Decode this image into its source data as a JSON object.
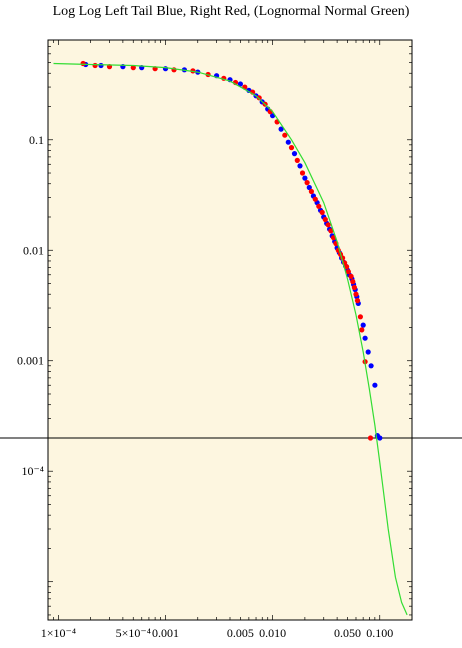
{
  "chart_data": {
    "type": "scatter",
    "title": "Log Log Left Tail Blue, Right Red, (Lognormal Normal Green)",
    "xscale": "log",
    "yscale": "log",
    "xlim": [
      8e-05,
      0.2
    ],
    "ylim": [
      4.5e-06,
      0.8
    ],
    "background": "#fdf6e0",
    "grid": false,
    "reference_line_y": 0.0002,
    "x_ticks": [
      {
        "value": 0.0001,
        "label": "1×10⁻⁴"
      },
      {
        "value": 0.0005,
        "label": "5×10⁻⁴"
      },
      {
        "value": 0.001,
        "label": "0.001"
      },
      {
        "value": 0.005,
        "label": "0.005"
      },
      {
        "value": 0.01,
        "label": "0.010"
      },
      {
        "value": 0.05,
        "label": "0.050"
      },
      {
        "value": 0.1,
        "label": "0.100"
      }
    ],
    "y_ticks": [
      {
        "value": 0.1,
        "label": "0.1"
      },
      {
        "value": 0.01,
        "label": "0.01"
      },
      {
        "value": 0.001,
        "label": "0.001"
      },
      {
        "value": 0.0001,
        "label": "10⁻⁴"
      }
    ],
    "series": [
      {
        "color": "#0000ff",
        "marker": "dot",
        "x": [
          0.00018,
          0.00025,
          0.0004,
          0.0006,
          0.001,
          0.0015,
          0.002,
          0.003,
          0.004,
          0.005,
          0.006,
          0.007,
          0.008,
          0.009,
          0.01,
          0.012,
          0.014,
          0.016,
          0.018,
          0.02,
          0.022,
          0.024,
          0.026,
          0.028,
          0.03,
          0.032,
          0.034,
          0.036,
          0.038,
          0.04,
          0.042,
          0.044,
          0.046,
          0.048,
          0.05,
          0.052,
          0.055,
          0.057,
          0.059,
          0.061,
          0.063,
          0.07,
          0.073,
          0.078,
          0.083,
          0.09,
          0.095,
          0.1
        ],
        "y": [
          0.48,
          0.47,
          0.46,
          0.45,
          0.44,
          0.43,
          0.41,
          0.38,
          0.35,
          0.32,
          0.28,
          0.25,
          0.22,
          0.19,
          0.165,
          0.125,
          0.095,
          0.075,
          0.058,
          0.045,
          0.037,
          0.031,
          0.027,
          0.023,
          0.02,
          0.0175,
          0.0155,
          0.0135,
          0.012,
          0.0105,
          0.0095,
          0.0085,
          0.0078,
          0.0072,
          0.0066,
          0.006,
          0.0055,
          0.0049,
          0.0044,
          0.0038,
          0.0033,
          0.0021,
          0.0016,
          0.0012,
          0.0009,
          0.0006,
          0.00021,
          0.0002
        ]
      },
      {
        "color": "#ff0000",
        "marker": "dot",
        "x": [
          0.00017,
          0.00022,
          0.0003,
          0.0005,
          0.0008,
          0.0012,
          0.0018,
          0.0025,
          0.0035,
          0.0045,
          0.0055,
          0.0065,
          0.0075,
          0.0085,
          0.0095,
          0.011,
          0.013,
          0.015,
          0.017,
          0.019,
          0.021,
          0.023,
          0.025,
          0.027,
          0.029,
          0.031,
          0.033,
          0.035,
          0.037,
          0.039,
          0.041,
          0.043,
          0.045,
          0.047,
          0.049,
          0.051,
          0.054,
          0.056,
          0.058,
          0.06,
          0.062,
          0.066,
          0.068,
          0.073,
          0.082
        ],
        "y": [
          0.49,
          0.47,
          0.46,
          0.45,
          0.44,
          0.43,
          0.42,
          0.39,
          0.36,
          0.33,
          0.3,
          0.27,
          0.24,
          0.21,
          0.18,
          0.145,
          0.11,
          0.085,
          0.065,
          0.05,
          0.041,
          0.034,
          0.029,
          0.025,
          0.022,
          0.019,
          0.017,
          0.015,
          0.013,
          0.0115,
          0.01,
          0.0092,
          0.0085,
          0.0077,
          0.0071,
          0.0064,
          0.0058,
          0.0052,
          0.0046,
          0.004,
          0.0035,
          0.0025,
          0.0019,
          0.00098,
          0.0002
        ]
      },
      {
        "color": "#33dd33",
        "marker": "line",
        "x": [
          9e-05,
          0.0002,
          0.0005,
          0.001,
          0.002,
          0.004,
          0.007,
          0.01,
          0.015,
          0.02,
          0.03,
          0.04,
          0.05,
          0.06,
          0.07,
          0.08,
          0.09,
          0.1,
          0.12,
          0.14,
          0.16,
          0.18
        ],
        "y": [
          0.49,
          0.48,
          0.47,
          0.45,
          0.41,
          0.34,
          0.25,
          0.18,
          0.1,
          0.062,
          0.027,
          0.012,
          0.0055,
          0.0026,
          0.0012,
          0.00055,
          0.00026,
          0.00012,
          3e-05,
          1.1e-05,
          6.5e-06,
          5e-06
        ]
      }
    ]
  }
}
